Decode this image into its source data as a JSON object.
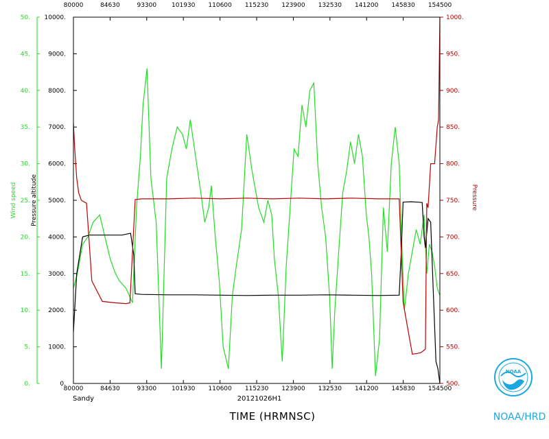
{
  "chart_data": {
    "type": "line",
    "storm": "Sandy",
    "flight_id": "20121026H1",
    "xlabel": "TIME (HRMNSC)",
    "brand": "NOAA/HRD",
    "logo_text": "NOAA",
    "x_ticks_seconds": [
      28800,
      31590,
      34380,
      37170,
      39960,
      42750,
      45540,
      48330,
      51120,
      53910,
      56700
    ],
    "x_tick_labels": [
      "80000",
      "84630",
      "93300",
      "101930",
      "110600",
      "115230",
      "123900",
      "132530",
      "141200",
      "145830",
      "154500"
    ],
    "x_range_seconds": [
      28800,
      56700
    ],
    "wind_axis": {
      "label": "Wind speed",
      "range": [
        0,
        50
      ],
      "ticks": [
        0,
        5,
        10,
        15,
        20,
        25,
        30,
        35,
        40,
        45,
        50
      ],
      "tick_labels": [
        "0.",
        "5.",
        "10.",
        "15.",
        "20.",
        "25.",
        "30.",
        "35.",
        "40.",
        "45.",
        "50."
      ],
      "color": "#22dd22"
    },
    "altitude_axis": {
      "label": "Pressure altitude",
      "range": [
        0,
        10000
      ],
      "ticks": [
        0,
        1000,
        2000,
        3000,
        4000,
        5000,
        6000,
        7000,
        8000,
        9000,
        10000
      ],
      "tick_labels": [
        "0.",
        "1000.",
        "2000.",
        "3000.",
        "4000.",
        "5000.",
        "6000.",
        "7000.",
        "8000.",
        "9000.",
        "10000."
      ],
      "color": "#000000"
    },
    "pressure_axis": {
      "label": "Pressure",
      "range": [
        500,
        1000
      ],
      "ticks": [
        500,
        550,
        600,
        650,
        700,
        750,
        800,
        850,
        900,
        950,
        1000
      ],
      "tick_labels": [
        "500.",
        "550.",
        "600.",
        "650.",
        "700.",
        "750.",
        "800.",
        "850.",
        "900.",
        "950.",
        "1000."
      ],
      "color": "#bb0000"
    },
    "series": [
      {
        "name": "Wind speed",
        "axis": "wind",
        "x_seconds": [
          28800,
          29100,
          29500,
          29900,
          30300,
          30800,
          31200,
          31600,
          32000,
          32300,
          32800,
          33300,
          33600,
          33900,
          34100,
          34400,
          34700,
          35100,
          35500,
          35900,
          36300,
          36700,
          37100,
          37400,
          37700,
          38100,
          38500,
          38800,
          39100,
          39300,
          39600,
          39900,
          40200,
          40600,
          40900,
          41200,
          41600,
          42000,
          42400,
          42900,
          43300,
          43600,
          43900,
          44100,
          44400,
          44700,
          45000,
          45300,
          45600,
          45900,
          46200,
          46500,
          46800,
          47100,
          47400,
          47700,
          48000,
          48300,
          48500,
          48700,
          49000,
          49300,
          49600,
          49900,
          50200,
          50500,
          50800,
          51100,
          51300,
          51500,
          51800,
          52100,
          52400,
          52700,
          53000,
          53300,
          53600,
          53800,
          54000,
          54300,
          54600,
          54900,
          55200,
          55500,
          55700,
          55900,
          56100,
          56300,
          56500,
          56700
        ],
        "values": [
          13,
          15,
          19,
          20,
          22,
          23,
          20,
          17,
          15,
          14,
          13,
          11,
          24,
          31,
          38,
          43,
          28,
          22,
          2,
          28,
          32,
          35,
          34,
          32,
          36,
          31,
          26,
          22,
          24,
          27,
          20,
          14,
          5,
          2,
          12,
          16,
          21,
          34,
          29,
          24,
          22,
          25,
          23,
          17,
          12,
          3,
          16,
          24,
          32,
          31,
          38,
          35,
          40,
          41,
          30,
          24,
          20,
          12,
          2,
          10,
          18,
          26,
          29,
          33,
          30,
          34,
          31,
          23,
          20,
          15,
          1,
          6,
          24,
          18,
          30,
          35,
          30,
          19,
          10,
          15,
          18,
          21,
          19,
          23,
          15,
          19,
          18,
          16,
          13,
          12
        ],
        "color": "#22dd22"
      },
      {
        "name": "Pressure altitude",
        "axis": "altitude",
        "x_seconds": [
          28800,
          29050,
          29500,
          30000,
          31000,
          32000,
          32500,
          33150,
          33400,
          33500,
          34000,
          36000,
          38000,
          40000,
          42000,
          44000,
          46000,
          48000,
          50000,
          52000,
          53600,
          53750,
          53900,
          54500,
          55000,
          55350,
          55500,
          55600,
          55800,
          56000,
          56200,
          56400,
          56550,
          56700
        ],
        "values": [
          1400,
          3000,
          4000,
          4050,
          4050,
          4050,
          4050,
          4100,
          3500,
          2450,
          2430,
          2420,
          2420,
          2410,
          2400,
          2410,
          2410,
          2420,
          2410,
          2400,
          2410,
          3500,
          4950,
          4960,
          4950,
          4940,
          4000,
          3700,
          4500,
          4400,
          2500,
          600,
          400,
          0
        ],
        "color": "#000000"
      },
      {
        "name": "Pressure",
        "axis": "pressure",
        "x_seconds": [
          28800,
          28900,
          29050,
          29200,
          29400,
          29800,
          30200,
          31000,
          32000,
          32800,
          33100,
          33300,
          33500,
          34000,
          36000,
          38000,
          40000,
          42000,
          44000,
          46000,
          48000,
          50000,
          52000,
          53600,
          53900,
          54600,
          55000,
          55250,
          55400,
          55600,
          55700,
          55800,
          56000,
          56300,
          56500,
          56600,
          56700
        ],
        "values": [
          855,
          820,
          780,
          760,
          750,
          746,
          640,
          612,
          610,
          609,
          610,
          680,
          751,
          752,
          752,
          753,
          752,
          753,
          752,
          753,
          752,
          753,
          752,
          752,
          611,
          540,
          541,
          542,
          544,
          547,
          746,
          740,
          800,
          800,
          850,
          860,
          1000
        ],
        "color": "#bb0000"
      }
    ]
  }
}
